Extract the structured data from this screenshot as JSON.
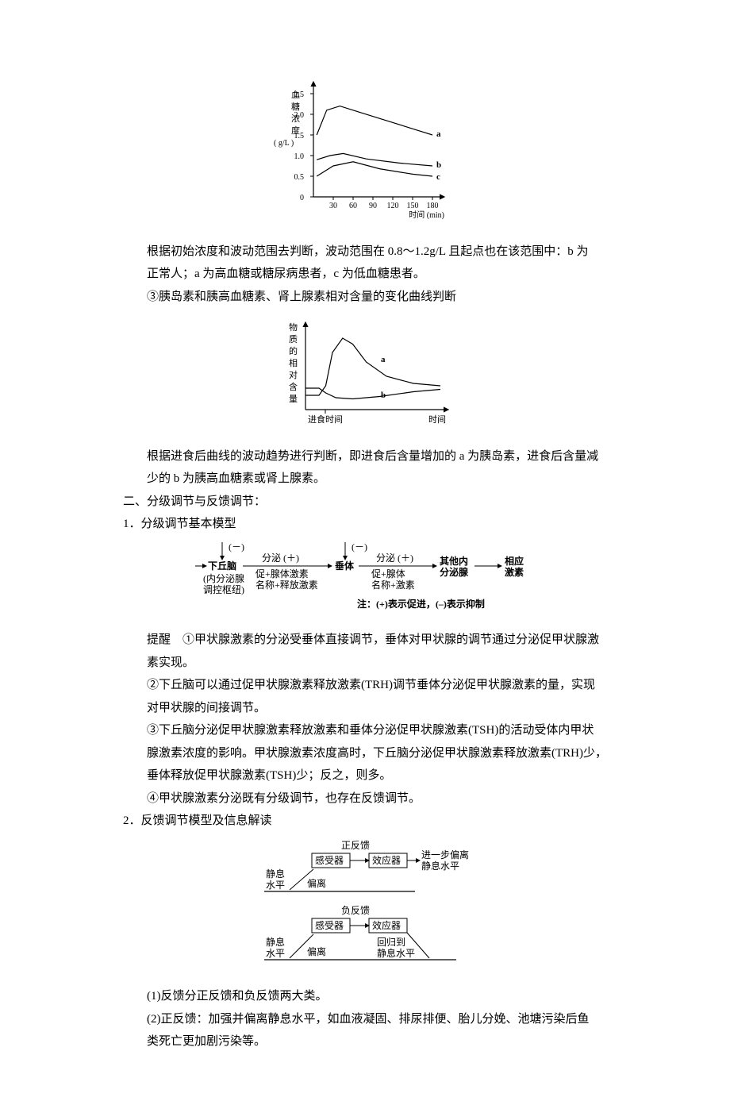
{
  "chart1": {
    "type": "line",
    "ylabel_lines": [
      "血",
      "糖",
      "浓",
      "度"
    ],
    "yunit": "( g/L )",
    "xlabel": "时间 (min)",
    "yticks": [
      "0",
      "0.5",
      "1.0",
      "1.5",
      "2.0",
      "2.5"
    ],
    "xticks": [
      "30",
      "60",
      "90",
      "120",
      "150",
      "180"
    ],
    "series_labels": {
      "a": "a",
      "b": "b",
      "c": "c"
    },
    "curves": {
      "a": [
        [
          5,
          1.5
        ],
        [
          20,
          2.1
        ],
        [
          40,
          2.2
        ],
        [
          70,
          2.05
        ],
        [
          110,
          1.85
        ],
        [
          160,
          1.6
        ],
        [
          180,
          1.5
        ]
      ],
      "b": [
        [
          5,
          0.9
        ],
        [
          25,
          1.0
        ],
        [
          45,
          1.05
        ],
        [
          80,
          0.92
        ],
        [
          130,
          0.82
        ],
        [
          180,
          0.75
        ]
      ],
      "c": [
        [
          5,
          0.5
        ],
        [
          30,
          0.75
        ],
        [
          60,
          0.85
        ],
        [
          100,
          0.68
        ],
        [
          150,
          0.55
        ],
        [
          180,
          0.5
        ]
      ]
    },
    "ylim": [
      0,
      2.5
    ],
    "xlim": [
      0,
      180
    ]
  },
  "para1_a": "根据初始浓度和波动范围去判断，波动范围在 0.8～1.2g/L 且起点也在该范围中：b 为",
  "para1_b": "正常人；a 为高血糖或糖尿病患者，c 为低血糖患者。",
  "para2": "③胰岛素和胰高血糖素、肾上腺素相对含量的变化曲线判断",
  "chart2": {
    "type": "line",
    "ylabel_lines": [
      "物",
      "质",
      "的",
      "相",
      "对",
      "含",
      "量"
    ],
    "xlabel_left": "进食时间",
    "xlabel_right": "时间",
    "series_labels": {
      "a": "a",
      "b": "b"
    },
    "curves": {
      "a": [
        [
          0,
          12
        ],
        [
          20,
          12
        ],
        [
          30,
          20
        ],
        [
          40,
          48
        ],
        [
          55,
          60
        ],
        [
          70,
          55
        ],
        [
          90,
          40
        ],
        [
          120,
          28
        ],
        [
          160,
          22
        ],
        [
          200,
          20
        ]
      ],
      "b": [
        [
          0,
          18
        ],
        [
          20,
          18
        ],
        [
          30,
          14
        ],
        [
          45,
          10
        ],
        [
          70,
          9
        ],
        [
          110,
          11
        ],
        [
          160,
          15
        ],
        [
          200,
          17
        ]
      ]
    }
  },
  "para3_a": "根据进食后曲线的波动趋势进行判断，即进食后含量增加的 a 为胰岛素，进食后含量减",
  "para3_b": "少的 b 为胰高血糖素或肾上腺素。",
  "h2": "二、分级调节与反馈调节：",
  "h2_1": "1．分级调节基本模型",
  "flow1": {
    "nodes": {
      "n1_l1": "下丘脑",
      "n1_l2": "(内分泌腺",
      "n1_l3": "调控枢纽)",
      "e1_top": "分泌  (＋)",
      "e1_l2": "促+腺体激素",
      "e1_l3": "名称+释放激素",
      "n2": "垂体",
      "e2_top": "分泌 (＋)",
      "e2_l2": "促+腺体",
      "e2_l3": "名称+激素",
      "n3_l1": "其他内",
      "n3_l2": "分泌腺",
      "n4_l1": "相应",
      "n4_l2": "激素",
      "neg": "(－)",
      "note": "注：(+)表示促进，(–)表示抑制"
    }
  },
  "para4_a": "提醒　①甲状腺激素的分泌受垂体直接调节，垂体对甲状腺的调节通过分泌促甲状腺激",
  "para4_b": "素实现。",
  "para5_a": "②下丘脑可以通过促甲状腺激素释放激素(TRH)调节垂体分泌促甲状腺激素的量，实现",
  "para5_b": "对甲状腺的间接调节。",
  "para6_a": "③下丘脑分泌促甲状腺激素释放激素和垂体分泌促甲状腺激素(TSH)的活动受体内甲状",
  "para6_b": "腺激素浓度的影响。甲状腺激素浓度高时，下丘脑分泌促甲状腺激素释放激素(TRH)少，",
  "para6_c": "垂体释放促甲状腺激素(TSH)少；反之，则多。",
  "para7": "④甲状腺激素分泌既有分级调节，也存在反馈调节。",
  "h2_2": "2．反馈调节模型及信息解读",
  "flow2": {
    "pos_title": "正反馈",
    "neg_title": "负反馈",
    "sensor": "感受器",
    "effector": "效应器",
    "rest": "静息",
    "level": "水平",
    "deviate": "偏离",
    "pos_out_l1": "进一步偏离",
    "pos_out_l2": "静息水平",
    "neg_out_l1": "回归到",
    "neg_out_l2": "静息水平"
  },
  "para8": "(1)反馈分正反馈和负反馈两大类。",
  "para9_a": "(2)正反馈：加强并偏离静息水平，如血液凝固、排尿排便、胎儿分娩、池塘污染后鱼",
  "para9_b": "类死亡更加剧污染等。"
}
